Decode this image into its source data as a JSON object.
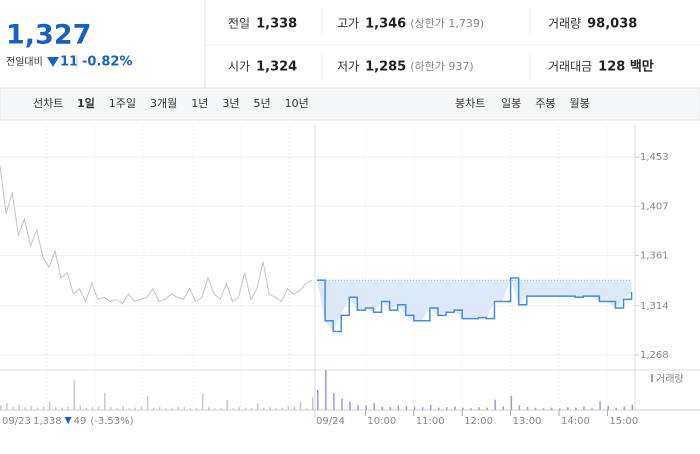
{
  "quote": {
    "price": "1,327",
    "change_label": "전일대비",
    "change": "11",
    "change_pct": "-0.82%"
  },
  "stats": [
    [
      {
        "label": "전일",
        "value": "1,338"
      },
      {
        "label": "고가",
        "value": "1,346",
        "note": "(상한가 1,739)"
      },
      {
        "label": "거래량",
        "value": "98,038"
      }
    ],
    [
      {
        "label": "시가",
        "value": "1,324"
      },
      {
        "label": "저가",
        "value": "1,285",
        "note": "(하한가 937)"
      },
      {
        "label": "거래대금",
        "value": "128 백만"
      }
    ]
  ],
  "tabs": {
    "line_label": "선차트",
    "periods": [
      "1일",
      "1주일",
      "3개월",
      "1년",
      "3년",
      "5년",
      "10년"
    ],
    "selected": 0,
    "candle_label": "봉차트",
    "candles": [
      "일봉",
      "주봉",
      "월봉"
    ]
  },
  "chart_data": {
    "type": "line",
    "ylim": [
      1254,
      1483
    ],
    "yticks": [
      {
        "value": 1268,
        "label": "1,268"
      },
      {
        "value": 1314,
        "label": "1,314"
      },
      {
        "value": 1361,
        "label": "1,361"
      },
      {
        "value": 1407,
        "label": "1,407"
      },
      {
        "value": 1453,
        "label": "1,453"
      }
    ],
    "prev_day": {
      "date": "09/23",
      "close": "1,338",
      "change": "49",
      "change_pct": "(-3.53%)",
      "color": "#c4c4c4",
      "values": [
        1445,
        1400,
        1420,
        1380,
        1395,
        1370,
        1385,
        1360,
        1350,
        1365,
        1340,
        1345,
        1325,
        1330,
        1318,
        1335,
        1320,
        1322,
        1318,
        1320,
        1316,
        1325,
        1318,
        1320,
        1322,
        1330,
        1318,
        1320,
        1325,
        1322,
        1320,
        1330,
        1318,
        1322,
        1340,
        1325,
        1320,
        1335,
        1318,
        1322,
        1345,
        1320,
        1330,
        1355,
        1325,
        1322,
        1318,
        1330,
        1325,
        1328,
        1335,
        1338
      ]
    },
    "date": "09/24",
    "x": [
      "09:00",
      "09:10",
      "09:20",
      "09:30",
      "09:40",
      "09:50",
      "10:00",
      "10:10",
      "10:20",
      "10:30",
      "10:40",
      "10:50",
      "11:00",
      "11:10",
      "11:20",
      "11:30",
      "11:40",
      "11:50",
      "12:00",
      "12:10",
      "12:20",
      "12:30",
      "12:40",
      "12:50",
      "13:00",
      "13:10",
      "13:20",
      "13:30",
      "13:40",
      "13:50",
      "14:00",
      "14:10",
      "14:20",
      "14:30",
      "14:40",
      "14:50",
      "15:00",
      "15:10",
      "15:20",
      "15:30"
    ],
    "series": [
      {
        "color": "#4a8ad8",
        "values": [
          1338,
          1300,
          1290,
          1305,
          1322,
          1310,
          1312,
          1308,
          1318,
          1310,
          1315,
          1305,
          1300,
          1300,
          1312,
          1305,
          1308,
          1310,
          1302,
          1302,
          1303,
          1302,
          1318,
          1318,
          1340,
          1315,
          1323,
          1323,
          1323,
          1323,
          1323,
          1323,
          1322,
          1323,
          1323,
          1318,
          1318,
          1312,
          1320,
          1327
        ]
      }
    ],
    "reference": 1338,
    "xticks": [
      "10:00",
      "11:00",
      "12:00",
      "13:00",
      "14:00",
      "15:00"
    ],
    "volume": {
      "name": "거래량",
      "color": "#a597d6",
      "prev_values": [
        800,
        1200,
        600,
        900,
        500,
        700,
        400,
        600,
        1500,
        500,
        400,
        600,
        5200,
        800,
        400,
        500,
        600,
        3000,
        500,
        400,
        700,
        300,
        400,
        600,
        2500,
        400,
        500,
        300,
        400,
        600,
        500,
        300,
        400,
        2800,
        500,
        300,
        400,
        1800,
        300,
        500,
        400,
        300,
        1200,
        400,
        500,
        300,
        400,
        600,
        500,
        1500,
        300,
        2200
      ],
      "values": [
        3500,
        7000,
        3000,
        2000,
        1500,
        900,
        800,
        1200,
        600,
        500,
        800,
        700,
        600,
        500,
        900,
        400,
        500,
        600,
        400,
        300,
        500,
        400,
        1800,
        600,
        2500,
        800,
        500,
        400,
        300,
        400,
        300,
        500,
        400,
        600,
        300,
        1500,
        700,
        400,
        600,
        900
      ]
    }
  }
}
